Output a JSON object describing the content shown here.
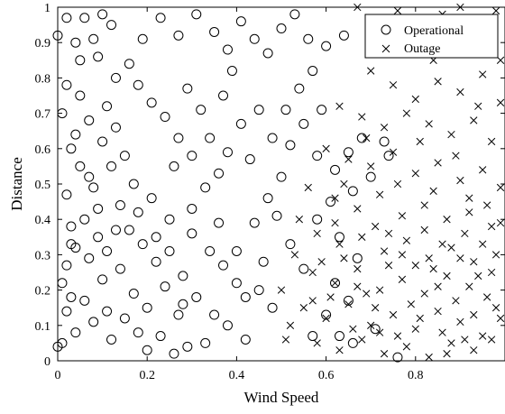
{
  "chart_data": {
    "type": "scatter",
    "xlabel": "Wind Speed",
    "ylabel": "Distance",
    "xlim": [
      0,
      1
    ],
    "ylim": [
      0,
      1
    ],
    "x_ticks": [
      "0",
      "0.2",
      "0.4",
      "0.6",
      "0.8"
    ],
    "x_tick_values": [
      0,
      0.2,
      0.4,
      0.6,
      0.8
    ],
    "y_ticks": [
      "0",
      "0.1",
      "0.2",
      "0.3",
      "0.4",
      "0.5",
      "0.6",
      "0.7",
      "0.8",
      "0.9",
      "1"
    ],
    "y_tick_values": [
      0,
      0.1,
      0.2,
      0.3,
      0.4,
      0.5,
      0.6,
      0.7,
      0.8,
      0.9,
      1
    ],
    "legend_position": "top-right",
    "grid": false,
    "series": [
      {
        "name": "Operational",
        "marker": "circle",
        "color": "#000000",
        "points": [
          [
            0.0,
            0.04
          ],
          [
            0.01,
            0.05
          ],
          [
            0.02,
            0.14
          ],
          [
            0.03,
            0.18
          ],
          [
            0.02,
            0.27
          ],
          [
            0.03,
            0.33
          ],
          [
            0.02,
            0.47
          ],
          [
            0.05,
            0.55
          ],
          [
            0.04,
            0.64
          ],
          [
            0.02,
            0.78
          ],
          [
            0.04,
            0.9
          ],
          [
            0.06,
            0.97
          ],
          [
            0.08,
            0.91
          ],
          [
            0.1,
            0.98
          ],
          [
            0.12,
            0.95
          ],
          [
            0.09,
            0.86
          ],
          [
            0.13,
            0.8
          ],
          [
            0.11,
            0.72
          ],
          [
            0.07,
            0.68
          ],
          [
            0.1,
            0.62
          ],
          [
            0.12,
            0.55
          ],
          [
            0.08,
            0.49
          ],
          [
            0.06,
            0.4
          ],
          [
            0.09,
            0.35
          ],
          [
            0.07,
            0.29
          ],
          [
            0.1,
            0.23
          ],
          [
            0.06,
            0.17
          ],
          [
            0.08,
            0.11
          ],
          [
            0.04,
            0.08
          ],
          [
            0.12,
            0.06
          ],
          [
            0.15,
            0.12
          ],
          [
            0.18,
            0.08
          ],
          [
            0.2,
            0.03
          ],
          [
            0.23,
            0.07
          ],
          [
            0.26,
            0.02
          ],
          [
            0.29,
            0.04
          ],
          [
            0.33,
            0.05
          ],
          [
            0.35,
            0.13
          ],
          [
            0.31,
            0.18
          ],
          [
            0.28,
            0.24
          ],
          [
            0.24,
            0.21
          ],
          [
            0.22,
            0.28
          ],
          [
            0.19,
            0.33
          ],
          [
            0.16,
            0.37
          ],
          [
            0.14,
            0.44
          ],
          [
            0.17,
            0.5
          ],
          [
            0.21,
            0.46
          ],
          [
            0.25,
            0.4
          ],
          [
            0.3,
            0.36
          ],
          [
            0.34,
            0.31
          ],
          [
            0.37,
            0.27
          ],
          [
            0.4,
            0.22
          ],
          [
            0.42,
            0.18
          ],
          [
            0.45,
            0.2
          ],
          [
            0.48,
            0.15
          ],
          [
            0.46,
            0.28
          ],
          [
            0.44,
            0.39
          ],
          [
            0.47,
            0.46
          ],
          [
            0.5,
            0.52
          ],
          [
            0.52,
            0.61
          ],
          [
            0.48,
            0.63
          ],
          [
            0.45,
            0.71
          ],
          [
            0.41,
            0.67
          ],
          [
            0.38,
            0.59
          ],
          [
            0.36,
            0.53
          ],
          [
            0.33,
            0.49
          ],
          [
            0.3,
            0.58
          ],
          [
            0.27,
            0.63
          ],
          [
            0.24,
            0.69
          ],
          [
            0.21,
            0.73
          ],
          [
            0.18,
            0.78
          ],
          [
            0.16,
            0.84
          ],
          [
            0.19,
            0.91
          ],
          [
            0.23,
            0.97
          ],
          [
            0.27,
            0.92
          ],
          [
            0.31,
            0.98
          ],
          [
            0.35,
            0.93
          ],
          [
            0.38,
            0.88
          ],
          [
            0.41,
            0.96
          ],
          [
            0.44,
            0.91
          ],
          [
            0.47,
            0.87
          ],
          [
            0.5,
            0.94
          ],
          [
            0.53,
            0.98
          ],
          [
            0.56,
            0.91
          ],
          [
            0.6,
            0.89
          ],
          [
            0.64,
            0.92
          ],
          [
            0.57,
            0.82
          ],
          [
            0.54,
            0.77
          ],
          [
            0.51,
            0.71
          ],
          [
            0.55,
            0.67
          ],
          [
            0.59,
            0.71
          ],
          [
            0.58,
            0.58
          ],
          [
            0.62,
            0.54
          ],
          [
            0.65,
            0.59
          ],
          [
            0.68,
            0.63
          ],
          [
            0.73,
            0.62
          ],
          [
            0.7,
            0.52
          ],
          [
            0.66,
            0.48
          ],
          [
            0.61,
            0.45
          ],
          [
            0.58,
            0.4
          ],
          [
            0.63,
            0.35
          ],
          [
            0.67,
            0.29
          ],
          [
            0.62,
            0.22
          ],
          [
            0.65,
            0.17
          ],
          [
            0.6,
            0.13
          ],
          [
            0.63,
            0.07
          ],
          [
            0.66,
            0.05
          ],
          [
            0.71,
            0.09
          ],
          [
            0.76,
            0.01
          ],
          [
            0.55,
            0.26
          ],
          [
            0.52,
            0.33
          ],
          [
            0.42,
            0.06
          ],
          [
            0.38,
            0.1
          ],
          [
            0.36,
            0.39
          ],
          [
            0.26,
            0.55
          ],
          [
            0.13,
            0.66
          ],
          [
            0.05,
            0.75
          ],
          [
            0.03,
            0.6
          ],
          [
            0.01,
            0.7
          ],
          [
            0.14,
            0.26
          ],
          [
            0.17,
            0.19
          ],
          [
            0.11,
            0.14
          ],
          [
            0.01,
            0.22
          ],
          [
            0.04,
            0.32
          ],
          [
            0.39,
            0.82
          ],
          [
            0.29,
            0.77
          ],
          [
            0.05,
            0.85
          ],
          [
            0.0,
            0.92
          ],
          [
            0.02,
            0.97
          ],
          [
            0.09,
            0.43
          ],
          [
            0.13,
            0.37
          ],
          [
            0.2,
            0.15
          ],
          [
            0.27,
            0.13
          ],
          [
            0.32,
            0.71
          ],
          [
            0.43,
            0.57
          ],
          [
            0.49,
            0.41
          ],
          [
            0.57,
            0.07
          ],
          [
            0.74,
            0.58
          ],
          [
            0.03,
            0.38
          ],
          [
            0.07,
            0.52
          ],
          [
            0.11,
            0.31
          ],
          [
            0.15,
            0.58
          ],
          [
            0.18,
            0.42
          ],
          [
            0.22,
            0.35
          ],
          [
            0.25,
            0.31
          ],
          [
            0.28,
            0.16
          ],
          [
            0.3,
            0.43
          ],
          [
            0.34,
            0.63
          ],
          [
            0.37,
            0.75
          ],
          [
            0.4,
            0.31
          ]
        ]
      },
      {
        "name": "Outage",
        "marker": "x",
        "color": "#000000",
        "points": [
          [
            0.67,
            1.0
          ],
          [
            0.72,
            0.97
          ],
          [
            0.76,
            0.99
          ],
          [
            0.81,
            0.94
          ],
          [
            0.86,
            0.98
          ],
          [
            0.9,
            1.0
          ],
          [
            0.94,
            0.97
          ],
          [
            0.98,
            0.99
          ],
          [
            0.79,
            0.88
          ],
          [
            0.84,
            0.85
          ],
          [
            0.88,
            0.91
          ],
          [
            0.93,
            0.87
          ],
          [
            0.97,
            0.92
          ],
          [
            0.7,
            0.82
          ],
          [
            0.75,
            0.78
          ],
          [
            0.8,
            0.74
          ],
          [
            0.85,
            0.79
          ],
          [
            0.9,
            0.76
          ],
          [
            0.95,
            0.81
          ],
          [
            0.99,
            0.73
          ],
          [
            0.63,
            0.72
          ],
          [
            0.68,
            0.69
          ],
          [
            0.73,
            0.66
          ],
          [
            0.78,
            0.7
          ],
          [
            0.83,
            0.67
          ],
          [
            0.88,
            0.64
          ],
          [
            0.93,
            0.68
          ],
          [
            0.97,
            0.62
          ],
          [
            0.6,
            0.6
          ],
          [
            0.65,
            0.57
          ],
          [
            0.7,
            0.55
          ],
          [
            0.75,
            0.59
          ],
          [
            0.8,
            0.53
          ],
          [
            0.85,
            0.56
          ],
          [
            0.9,
            0.51
          ],
          [
            0.95,
            0.54
          ],
          [
            0.99,
            0.49
          ],
          [
            0.56,
            0.49
          ],
          [
            0.62,
            0.46
          ],
          [
            0.67,
            0.43
          ],
          [
            0.72,
            0.47
          ],
          [
            0.77,
            0.41
          ],
          [
            0.82,
            0.44
          ],
          [
            0.87,
            0.4
          ],
          [
            0.92,
            0.42
          ],
          [
            0.97,
            0.38
          ],
          [
            0.58,
            0.36
          ],
          [
            0.63,
            0.33
          ],
          [
            0.68,
            0.35
          ],
          [
            0.73,
            0.31
          ],
          [
            0.78,
            0.34
          ],
          [
            0.83,
            0.29
          ],
          [
            0.88,
            0.32
          ],
          [
            0.93,
            0.28
          ],
          [
            0.98,
            0.3
          ],
          [
            0.57,
            0.25
          ],
          [
            0.62,
            0.22
          ],
          [
            0.67,
            0.26
          ],
          [
            0.72,
            0.2
          ],
          [
            0.77,
            0.23
          ],
          [
            0.82,
            0.19
          ],
          [
            0.87,
            0.24
          ],
          [
            0.92,
            0.21
          ],
          [
            0.96,
            0.18
          ],
          [
            0.55,
            0.15
          ],
          [
            0.6,
            0.12
          ],
          [
            0.65,
            0.16
          ],
          [
            0.7,
            0.1
          ],
          [
            0.75,
            0.13
          ],
          [
            0.8,
            0.09
          ],
          [
            0.85,
            0.14
          ],
          [
            0.9,
            0.11
          ],
          [
            0.95,
            0.07
          ],
          [
            0.99,
            0.12
          ],
          [
            0.58,
            0.05
          ],
          [
            0.63,
            0.03
          ],
          [
            0.68,
            0.06
          ],
          [
            0.73,
            0.02
          ],
          [
            0.78,
            0.04
          ],
          [
            0.83,
            0.01
          ],
          [
            0.88,
            0.05
          ],
          [
            0.93,
            0.03
          ],
          [
            0.97,
            0.06
          ],
          [
            0.52,
            0.1
          ],
          [
            0.5,
            0.2
          ],
          [
            0.53,
            0.3
          ],
          [
            0.54,
            0.4
          ],
          [
            0.51,
            0.06
          ],
          [
            0.86,
            0.33
          ],
          [
            0.91,
            0.36
          ],
          [
            0.94,
            0.24
          ],
          [
            0.89,
            0.17
          ],
          [
            0.84,
            0.26
          ],
          [
            0.79,
            0.16
          ],
          [
            0.74,
            0.27
          ],
          [
            0.69,
            0.19
          ],
          [
            0.64,
            0.29
          ],
          [
            0.66,
            0.09
          ],
          [
            0.71,
            0.38
          ],
          [
            0.76,
            0.5
          ],
          [
            0.81,
            0.62
          ],
          [
            0.96,
            0.44
          ],
          [
            0.98,
            0.15
          ],
          [
            0.91,
            0.06
          ],
          [
            0.86,
            0.08
          ],
          [
            0.81,
            0.12
          ],
          [
            0.76,
            0.07
          ],
          [
            0.71,
            0.15
          ],
          [
            0.61,
            0.18
          ],
          [
            0.59,
            0.28
          ],
          [
            0.74,
            0.36
          ],
          [
            0.84,
            0.48
          ],
          [
            0.89,
            0.58
          ],
          [
            0.94,
            0.72
          ],
          [
            0.99,
            0.85
          ],
          [
            0.64,
            0.5
          ],
          [
            0.69,
            0.63
          ],
          [
            0.87,
            0.02
          ],
          [
            0.93,
            0.13
          ],
          [
            0.97,
            0.25
          ],
          [
            0.95,
            0.33
          ],
          [
            0.92,
            0.46
          ],
          [
            0.82,
            0.37
          ],
          [
            0.77,
            0.3
          ],
          [
            0.72,
            0.08
          ],
          [
            0.67,
            0.21
          ],
          [
            0.62,
            0.39
          ],
          [
            0.57,
            0.17
          ],
          [
            0.85,
            0.21
          ],
          [
            0.8,
            0.27
          ],
          [
            0.9,
            0.29
          ],
          [
            0.99,
            0.39
          ]
        ]
      }
    ]
  }
}
